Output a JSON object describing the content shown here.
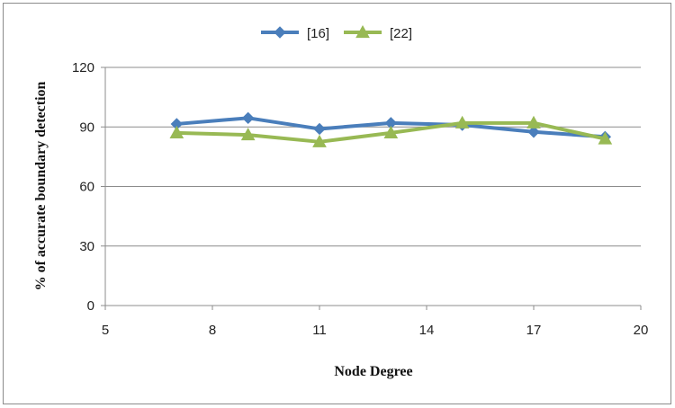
{
  "chart_data": {
    "type": "line",
    "xlabel": "Node Degree",
    "ylabel": "% of accurate boundary detection",
    "xlim": [
      5,
      20
    ],
    "ylim": [
      0,
      120
    ],
    "xticks": [
      "5",
      "8",
      "11",
      "14",
      "17",
      "20"
    ],
    "yticks": [
      "0",
      "30",
      "60",
      "90",
      "120"
    ],
    "grid": "horizontal",
    "legend": "top-center",
    "x": [
      7,
      9,
      11,
      13,
      15,
      17,
      19
    ],
    "series": [
      {
        "name": "[16]",
        "color": "#4a7ebb",
        "marker": "diamond",
        "values": [
          91.5,
          94.5,
          89,
          92,
          91,
          87.5,
          85
        ]
      },
      {
        "name": "[22]",
        "color": "#98b954",
        "marker": "triangle",
        "values": [
          87,
          86,
          82.5,
          87,
          92,
          92,
          84
        ]
      }
    ]
  }
}
